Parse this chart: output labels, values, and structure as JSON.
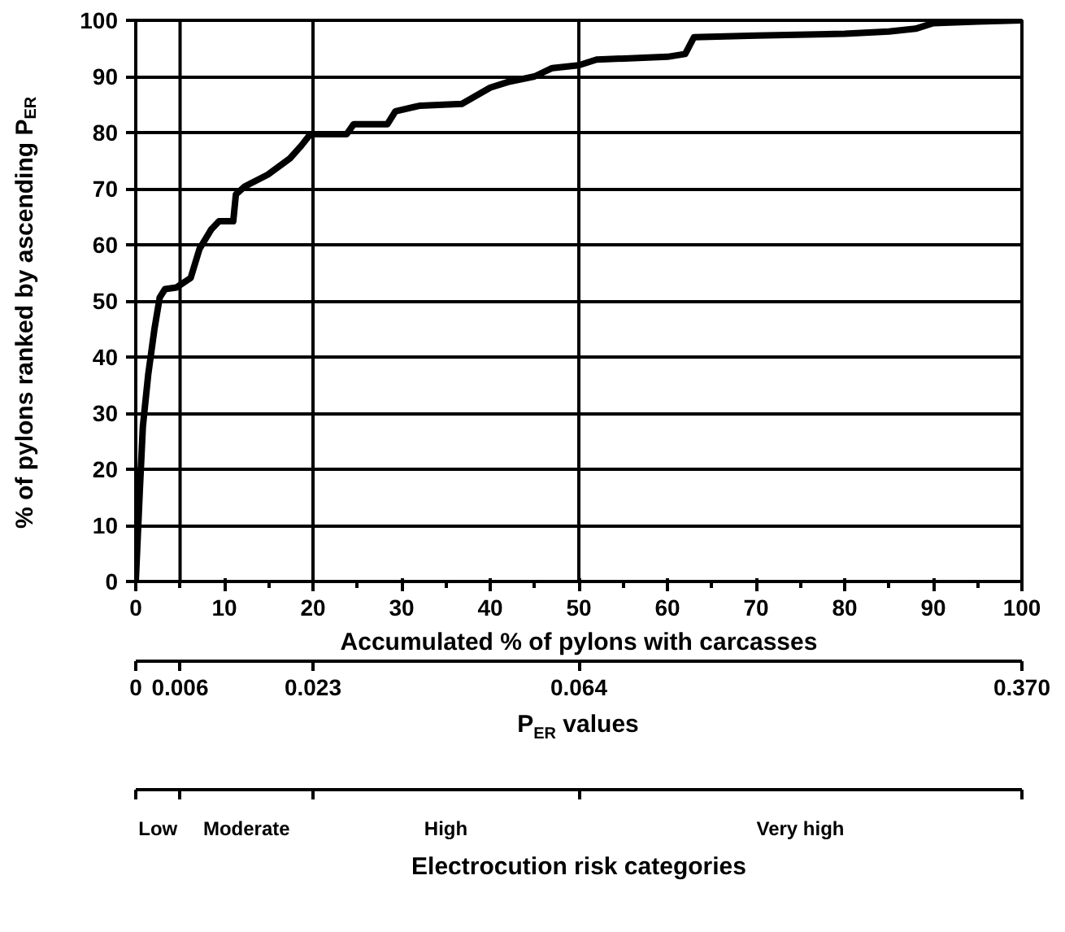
{
  "chart_data": {
    "type": "line",
    "xlabel": "Accumulated % of pylons with carcasses",
    "ylabel": "% of pylons ranked by ascending P$_{ER}$",
    "series": [
      {
        "color": "#000000",
        "x": [
          0,
          0.45,
          0.8,
          1.4,
          2.1,
          2.7,
          3.3,
          4.6,
          6.2,
          7.2,
          8.5,
          9.4,
          11,
          11.3,
          12.3,
          14.9,
          17.4,
          18.7,
          19.7,
          23.8,
          24.6,
          28.4,
          29.3,
          32.1,
          36.8,
          40,
          42,
          45,
          47,
          50,
          52,
          60,
          62,
          63,
          70,
          80,
          85,
          88,
          90,
          95,
          100
        ],
        "values": [
          0,
          16,
          27.6,
          36.8,
          44.9,
          50.6,
          52.1,
          52.4,
          54.1,
          59.3,
          62.7,
          64.2,
          64.2,
          69,
          70.4,
          72.5,
          75.4,
          77.7,
          79.7,
          79.7,
          81.5,
          81.5,
          83.8,
          84.8,
          85.1,
          88,
          89,
          90,
          91.5,
          92,
          93,
          93.5,
          94,
          97,
          97.3,
          97.6,
          98,
          98.5,
          99.5,
          99.8,
          100
        ]
      }
    ],
    "xlim": [
      0,
      100
    ],
    "ylim": [
      0,
      100
    ],
    "xticks": [
      0,
      10,
      20,
      30,
      40,
      50,
      60,
      70,
      80,
      90,
      100
    ],
    "yticks": [
      0,
      10,
      20,
      30,
      40,
      50,
      60,
      70,
      80,
      90,
      100
    ],
    "annotations": [
      "0",
      "0.006",
      "0.023",
      "0.064",
      "0.370",
      "P$_{ER}$ values",
      "Low",
      "Moderate",
      "High",
      "Very high",
      "Electrocution risk categories"
    ],
    "ref_lines": [
      {
        "axis": "x",
        "value": 5,
        "color": "#000000"
      },
      {
        "axis": "x",
        "value": 20,
        "color": "#000000"
      },
      {
        "axis": "x",
        "value": 50,
        "color": "#000000"
      }
    ],
    "grid": "y",
    "marker": "none",
    "line_style": "solid"
  }
}
